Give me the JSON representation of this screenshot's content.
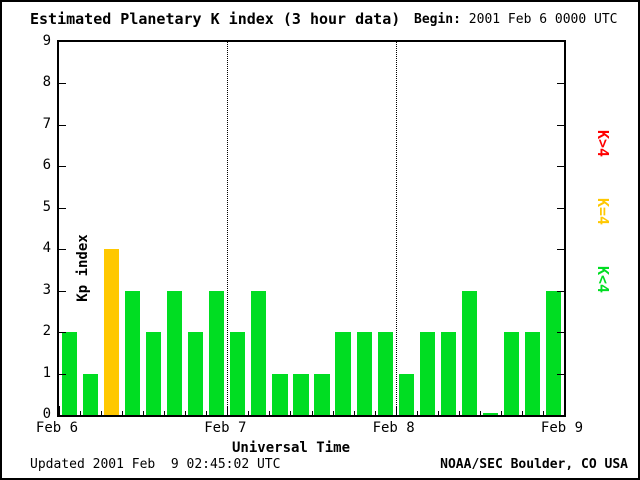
{
  "header": {
    "title": "Estimated Planetary K index (3 hour data)",
    "begin_label": "Begin:",
    "begin_value": "2001 Feb 6 0000 UTC"
  },
  "footer": {
    "updated": "Updated 2001 Feb  9 02:45:02 UTC",
    "source": "NOAA/SEC Boulder, CO USA"
  },
  "legend": [
    {
      "label": "K>4",
      "color": "#ff0000"
    },
    {
      "label": "K=4",
      "color": "#ffc800"
    },
    {
      "label": "K<4",
      "color": "#00dd22"
    }
  ],
  "chart_data": {
    "type": "bar",
    "title": "Estimated Planetary K index (3 hour data)",
    "xlabel": "Universal Time",
    "ylabel": "Kp index",
    "ylim": [
      0,
      9
    ],
    "y_ticks": [
      0,
      1,
      2,
      3,
      4,
      5,
      6,
      7,
      8,
      9
    ],
    "x_day_labels": [
      "Feb 6",
      "Feb 7",
      "Feb 8",
      "Feb 9"
    ],
    "hours_per_bar": 3,
    "values": [
      2,
      1,
      4,
      3,
      2,
      3,
      2,
      3,
      2,
      3,
      1,
      1,
      1,
      2,
      2,
      2,
      1,
      2,
      2,
      3,
      0,
      2,
      2,
      3
    ],
    "colors": {
      "low": "#00dd22",
      "mid": "#ffc800",
      "high": "#ff0000"
    },
    "color_rule": "green if K<4, yellow if K=4, red if K>4",
    "grid": "vertical dotted lines at day boundaries",
    "legend_position": "right"
  }
}
